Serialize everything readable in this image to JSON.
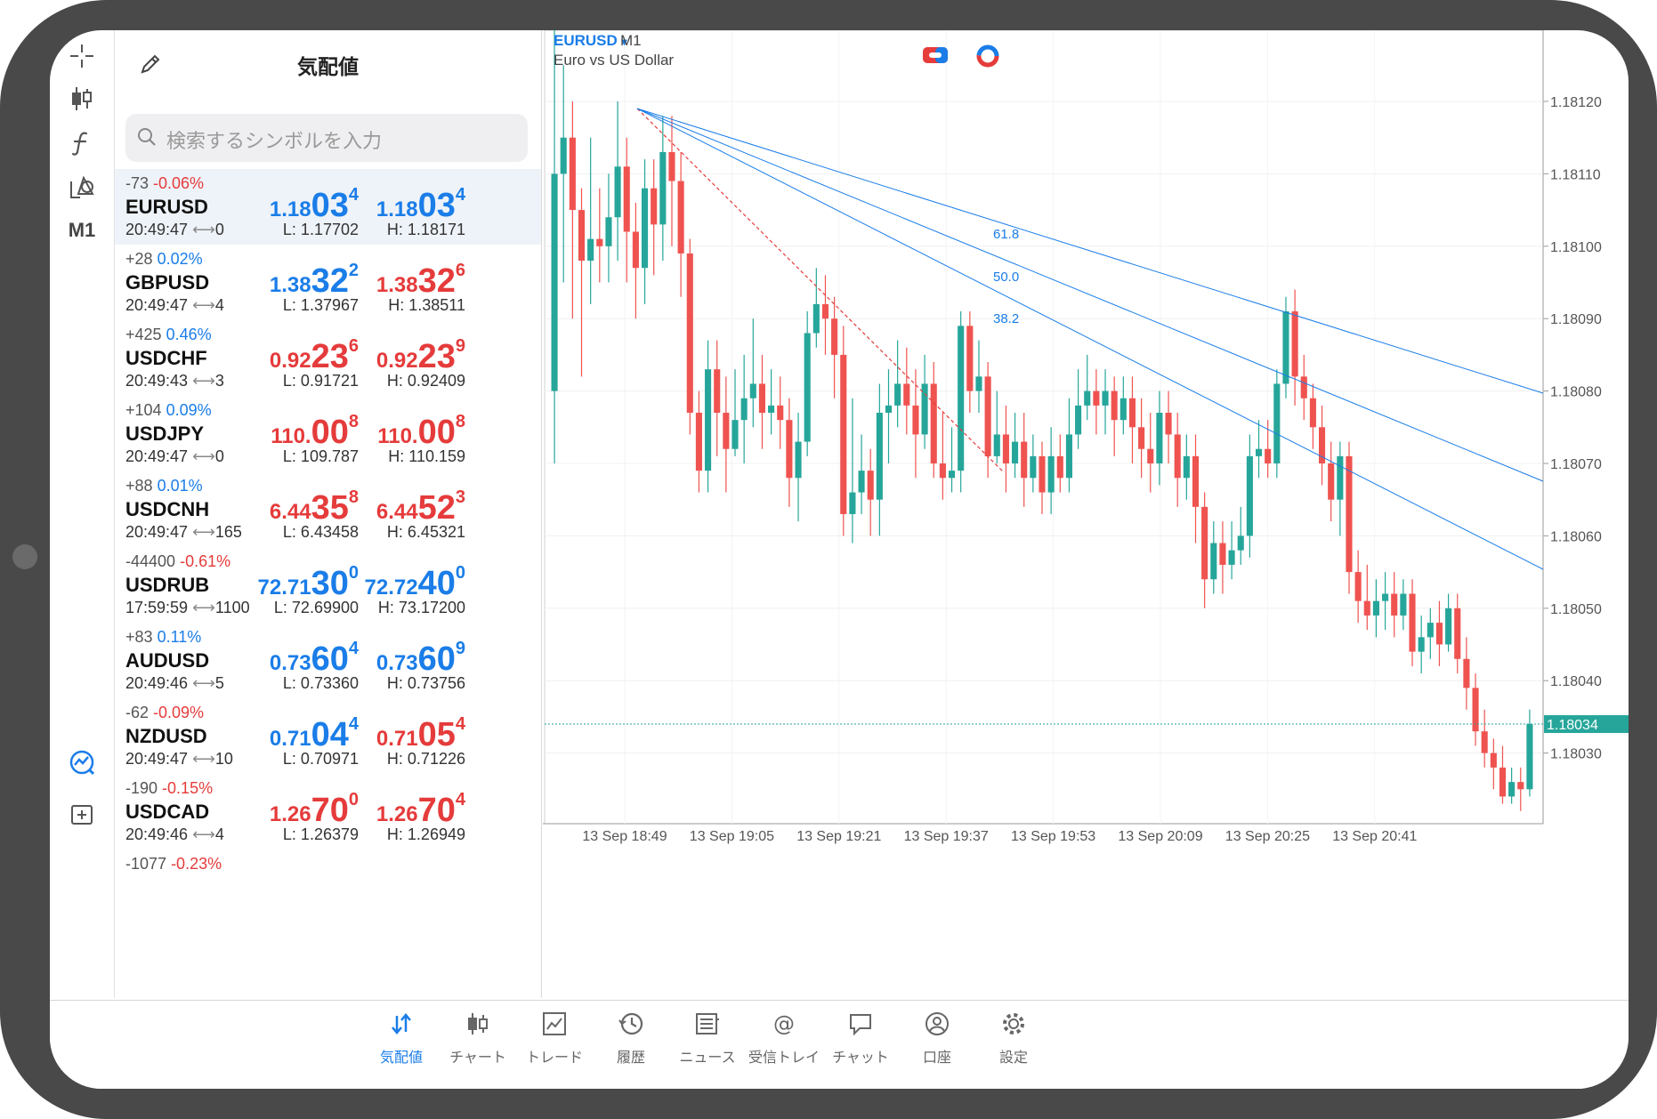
{
  "rail": {
    "timeframe": "M1"
  },
  "market_watch": {
    "title": "気配値",
    "search_placeholder": "検索するシンボルを入力",
    "rows": [
      {
        "pts": "-73",
        "pct": "-0.06%",
        "pct_color": "#e53b3b",
        "symbol": "EURUSD",
        "time": "20:49:47",
        "spread": "0",
        "bid_a": "1.18",
        "bid_b": "03",
        "bid_c": "4",
        "bid_color": "#1a7de8",
        "ask_a": "1.18",
        "ask_b": "03",
        "ask_c": "4",
        "ask_color": "#1a7de8",
        "low": "L: 1.17702",
        "high": "H: 1.18171",
        "selected": true
      },
      {
        "pts": "+28",
        "pct": "0.02%",
        "pct_color": "#1a7de8",
        "symbol": "GBPUSD",
        "time": "20:49:47",
        "spread": "4",
        "bid_a": "1.38",
        "bid_b": "32",
        "bid_c": "2",
        "bid_color": "#1a7de8",
        "ask_a": "1.38",
        "ask_b": "32",
        "ask_c": "6",
        "ask_color": "#e53b3b",
        "low": "L: 1.37967",
        "high": "H: 1.38511"
      },
      {
        "pts": "+425",
        "pct": "0.46%",
        "pct_color": "#1a7de8",
        "symbol": "USDCHF",
        "time": "20:49:43",
        "spread": "3",
        "bid_a": "0.92",
        "bid_b": "23",
        "bid_c": "6",
        "bid_color": "#e53b3b",
        "ask_a": "0.92",
        "ask_b": "23",
        "ask_c": "9",
        "ask_color": "#e53b3b",
        "low": "L: 0.91721",
        "high": "H: 0.92409"
      },
      {
        "pts": "+104",
        "pct": "0.09%",
        "pct_color": "#1a7de8",
        "symbol": "USDJPY",
        "time": "20:49:47",
        "spread": "0",
        "bid_a": "110.",
        "bid_b": "00",
        "bid_c": "8",
        "bid_color": "#e53b3b",
        "ask_a": "110.",
        "ask_b": "00",
        "ask_c": "8",
        "ask_color": "#e53b3b",
        "low": "L: 109.787",
        "high": "H: 110.159"
      },
      {
        "pts": "+88",
        "pct": "0.01%",
        "pct_color": "#1a7de8",
        "symbol": "USDCNH",
        "time": "20:49:47",
        "spread": "165",
        "bid_a": "6.44",
        "bid_b": "35",
        "bid_c": "8",
        "bid_color": "#e53b3b",
        "ask_a": "6.44",
        "ask_b": "52",
        "ask_c": "3",
        "ask_color": "#e53b3b",
        "low": "L: 6.43458",
        "high": "H: 6.45321"
      },
      {
        "pts": "-44400",
        "pct": "-0.61%",
        "pct_color": "#e53b3b",
        "symbol": "USDRUB",
        "time": "17:59:59",
        "spread": "1100",
        "bid_a": "72.71",
        "bid_b": "30",
        "bid_c": "0",
        "bid_color": "#1a7de8",
        "ask_a": "72.72",
        "ask_b": "40",
        "ask_c": "0",
        "ask_color": "#1a7de8",
        "low": "L: 72.69900",
        "high": "H: 73.17200"
      },
      {
        "pts": "+83",
        "pct": "0.11%",
        "pct_color": "#1a7de8",
        "symbol": "AUDUSD",
        "time": "20:49:46",
        "spread": "5",
        "bid_a": "0.73",
        "bid_b": "60",
        "bid_c": "4",
        "bid_color": "#1a7de8",
        "ask_a": "0.73",
        "ask_b": "60",
        "ask_c": "9",
        "ask_color": "#1a7de8",
        "low": "L: 0.73360",
        "high": "H: 0.73756"
      },
      {
        "pts": "-62",
        "pct": "-0.09%",
        "pct_color": "#e53b3b",
        "symbol": "NZDUSD",
        "time": "20:49:47",
        "spread": "10",
        "bid_a": "0.71",
        "bid_b": "04",
        "bid_c": "4",
        "bid_color": "#1a7de8",
        "ask_a": "0.71",
        "ask_b": "05",
        "ask_c": "4",
        "ask_color": "#e53b3b",
        "low": "L: 0.70971",
        "high": "H: 0.71226"
      },
      {
        "pts": "-190",
        "pct": "-0.15%",
        "pct_color": "#e53b3b",
        "symbol": "USDCAD",
        "time": "20:49:46",
        "spread": "4",
        "bid_a": "1.26",
        "bid_b": "70",
        "bid_c": "0",
        "bid_color": "#e53b3b",
        "ask_a": "1.26",
        "ask_b": "70",
        "ask_c": "4",
        "ask_color": "#e53b3b",
        "low": "L: 1.26379",
        "high": "H: 1.26949"
      },
      {
        "pts": "-1077",
        "pct": "-0.23%",
        "pct_color": "#e53b3b",
        "symbol": "",
        "time": "",
        "spread": "",
        "bid_a": "",
        "bid_b": "",
        "bid_c": "",
        "bid_color": "#1a7de8",
        "ask_a": "",
        "ask_b": "",
        "ask_c": "",
        "ask_color": "#1a7de8",
        "low": "",
        "high": ""
      }
    ]
  },
  "chart": {
    "symbol": "EURUSD",
    "timeframe_arrow": "▾",
    "timeframe": "M1",
    "description": "Euro vs US Dollar",
    "up_color": "#26a69a",
    "down_color": "#ef5350",
    "fib_color": "#1a7de8",
    "price_labels": [
      "1.18120",
      "1.18110",
      "1.18100",
      "1.18090",
      "1.18080",
      "1.18070",
      "1.18060",
      "1.18050",
      "1.18040",
      "1.18030"
    ],
    "current_price": "1.18034",
    "time_labels": [
      "13 Sep 18:49",
      "13 Sep 19:05",
      "13 Sep 19:21",
      "13 Sep 19:37",
      "13 Sep 19:53",
      "13 Sep 20:09",
      "13 Sep 20:25",
      "13 Sep 20:41"
    ],
    "fib_levels": [
      "61.8",
      "50.0",
      "38.2"
    ]
  },
  "chart_data": {
    "type": "candlestick",
    "title": "EURUSD M1",
    "ylim": [
      1.18015,
      1.18125
    ],
    "candles": [
      [
        1.1808,
        1.1811,
        1.1813,
        1.1807
      ],
      [
        1.1811,
        1.18115,
        1.18125,
        1.18095
      ],
      [
        1.18115,
        1.18105,
        1.1812,
        1.1809
      ],
      [
        1.18105,
        1.18098,
        1.18108,
        1.18082
      ],
      [
        1.18098,
        1.18101,
        1.18115,
        1.18092
      ],
      [
        1.18101,
        1.181,
        1.18108,
        1.18095
      ],
      [
        1.181,
        1.18104,
        1.1811,
        1.18095
      ],
      [
        1.18104,
        1.18111,
        1.1812,
        1.18098
      ],
      [
        1.18111,
        1.18102,
        1.18115,
        1.18095
      ],
      [
        1.18102,
        1.18097,
        1.18106,
        1.1809
      ],
      [
        1.18097,
        1.18108,
        1.18112,
        1.18092
      ],
      [
        1.18108,
        1.18103,
        1.18112,
        1.18096
      ],
      [
        1.18103,
        1.18113,
        1.18118,
        1.18098
      ],
      [
        1.18113,
        1.18109,
        1.18118,
        1.181
      ],
      [
        1.18109,
        1.18099,
        1.18113,
        1.18093
      ],
      [
        1.18099,
        1.18077,
        1.18101,
        1.18074
      ],
      [
        1.18077,
        1.18069,
        1.1808,
        1.18066
      ],
      [
        1.18069,
        1.18083,
        1.18087,
        1.18066
      ],
      [
        1.18083,
        1.18077,
        1.18087,
        1.18071
      ],
      [
        1.18077,
        1.18072,
        1.18082,
        1.18066
      ],
      [
        1.18072,
        1.18076,
        1.18083,
        1.18071
      ],
      [
        1.18076,
        1.18079,
        1.18085,
        1.1807
      ],
      [
        1.18079,
        1.18081,
        1.1809,
        1.18075
      ],
      [
        1.18081,
        1.18077,
        1.18085,
        1.18072
      ],
      [
        1.18077,
        1.18078,
        1.18083,
        1.18074
      ],
      [
        1.18078,
        1.18076,
        1.18082,
        1.18072
      ],
      [
        1.18076,
        1.18068,
        1.18079,
        1.18064
      ],
      [
        1.18068,
        1.18073,
        1.18077,
        1.18062
      ],
      [
        1.18073,
        1.18088,
        1.18091,
        1.18071
      ],
      [
        1.18088,
        1.18092,
        1.18097,
        1.18086
      ],
      [
        1.18092,
        1.1809,
        1.18096,
        1.18085
      ],
      [
        1.1809,
        1.18085,
        1.18093,
        1.18079
      ],
      [
        1.18085,
        1.18063,
        1.18089,
        1.1806
      ],
      [
        1.18063,
        1.18066,
        1.18079,
        1.18059
      ],
      [
        1.18066,
        1.18069,
        1.18074,
        1.18063
      ],
      [
        1.18069,
        1.18065,
        1.18072,
        1.1806
      ],
      [
        1.18065,
        1.18077,
        1.18081,
        1.1806
      ],
      [
        1.18077,
        1.18078,
        1.18083,
        1.1807
      ],
      [
        1.18078,
        1.18081,
        1.18087,
        1.18075
      ],
      [
        1.18081,
        1.18078,
        1.18086,
        1.18074
      ],
      [
        1.18078,
        1.18074,
        1.18083,
        1.18068
      ],
      [
        1.18074,
        1.18081,
        1.18085,
        1.18072
      ],
      [
        1.18081,
        1.1807,
        1.18084,
        1.18068
      ],
      [
        1.1807,
        1.18068,
        1.18077,
        1.18065
      ],
      [
        1.18068,
        1.18069,
        1.18075,
        1.18066
      ],
      [
        1.18069,
        1.18089,
        1.18091,
        1.18066
      ],
      [
        1.18089,
        1.1808,
        1.18091,
        1.18077
      ],
      [
        1.1808,
        1.18082,
        1.18087,
        1.18077
      ],
      [
        1.18082,
        1.18071,
        1.18084,
        1.18068
      ],
      [
        1.18071,
        1.18074,
        1.1808,
        1.1807
      ],
      [
        1.18074,
        1.1807,
        1.18078,
        1.18066
      ],
      [
        1.1807,
        1.18073,
        1.18077,
        1.18068
      ],
      [
        1.18073,
        1.18068,
        1.18077,
        1.18064
      ],
      [
        1.18068,
        1.18071,
        1.18074,
        1.18066
      ],
      [
        1.18071,
        1.18066,
        1.18073,
        1.18063
      ],
      [
        1.18066,
        1.18071,
        1.18075,
        1.18063
      ],
      [
        1.18071,
        1.18068,
        1.18074,
        1.18066
      ],
      [
        1.18068,
        1.18074,
        1.18079,
        1.18066
      ],
      [
        1.18074,
        1.18078,
        1.18083,
        1.18072
      ],
      [
        1.18078,
        1.1808,
        1.18085,
        1.18076
      ],
      [
        1.1808,
        1.18078,
        1.18083,
        1.18074
      ],
      [
        1.18078,
        1.1808,
        1.18083,
        1.18074
      ],
      [
        1.1808,
        1.18076,
        1.18082,
        1.18071
      ],
      [
        1.18076,
        1.18079,
        1.18082,
        1.18074
      ],
      [
        1.18079,
        1.18075,
        1.18082,
        1.1807
      ],
      [
        1.18075,
        1.18072,
        1.18079,
        1.18068
      ],
      [
        1.18072,
        1.1807,
        1.18077,
        1.18066
      ],
      [
        1.1807,
        1.18077,
        1.1808,
        1.18067
      ],
      [
        1.18077,
        1.18074,
        1.1808,
        1.1807
      ],
      [
        1.18074,
        1.18068,
        1.18077,
        1.18064
      ],
      [
        1.18068,
        1.18071,
        1.18074,
        1.18065
      ],
      [
        1.18071,
        1.18064,
        1.18074,
        1.18059
      ],
      [
        1.18064,
        1.18054,
        1.18066,
        1.1805
      ],
      [
        1.18054,
        1.18059,
        1.18062,
        1.18052
      ],
      [
        1.18059,
        1.18056,
        1.18062,
        1.18052
      ],
      [
        1.18056,
        1.18058,
        1.18062,
        1.18054
      ],
      [
        1.18058,
        1.1806,
        1.18064,
        1.18056
      ],
      [
        1.1806,
        1.18071,
        1.18074,
        1.18057
      ],
      [
        1.18071,
        1.18072,
        1.18076,
        1.18068
      ],
      [
        1.18072,
        1.1807,
        1.18076,
        1.18068
      ],
      [
        1.1807,
        1.18081,
        1.18083,
        1.18068
      ],
      [
        1.18081,
        1.18091,
        1.18093,
        1.18079
      ],
      [
        1.18091,
        1.18082,
        1.18094,
        1.18078
      ],
      [
        1.18082,
        1.18079,
        1.18085,
        1.18076
      ],
      [
        1.18079,
        1.18075,
        1.18081,
        1.18072
      ],
      [
        1.18075,
        1.1807,
        1.18078,
        1.18067
      ],
      [
        1.1807,
        1.18065,
        1.18073,
        1.18062
      ],
      [
        1.18065,
        1.18071,
        1.18073,
        1.1806
      ],
      [
        1.18071,
        1.18055,
        1.18073,
        1.18052
      ],
      [
        1.18055,
        1.18051,
        1.18058,
        1.18048
      ],
      [
        1.18051,
        1.18049,
        1.18056,
        1.18047
      ],
      [
        1.18049,
        1.18051,
        1.18054,
        1.18046
      ],
      [
        1.18051,
        1.18052,
        1.18055,
        1.18047
      ],
      [
        1.18052,
        1.18049,
        1.18055,
        1.18046
      ],
      [
        1.18049,
        1.18052,
        1.18054,
        1.18047
      ],
      [
        1.18052,
        1.18044,
        1.18054,
        1.18042
      ],
      [
        1.18044,
        1.18046,
        1.18049,
        1.18041
      ],
      [
        1.18046,
        1.18048,
        1.1805,
        1.18043
      ],
      [
        1.18048,
        1.18045,
        1.18051,
        1.18042
      ],
      [
        1.18045,
        1.1805,
        1.18052,
        1.18044
      ],
      [
        1.1805,
        1.18043,
        1.18052,
        1.18041
      ],
      [
        1.18043,
        1.18039,
        1.18046,
        1.18036
      ],
      [
        1.18039,
        1.18033,
        1.18041,
        1.18031
      ],
      [
        1.18033,
        1.1803,
        1.18036,
        1.18028
      ],
      [
        1.1803,
        1.18028,
        1.18032,
        1.18025
      ],
      [
        1.18028,
        1.18024,
        1.18031,
        1.18023
      ],
      [
        1.18024,
        1.18026,
        1.18028,
        1.18023
      ],
      [
        1.18026,
        1.18025,
        1.18028,
        1.18022
      ],
      [
        1.18025,
        1.18034,
        1.18036,
        1.18024
      ]
    ]
  },
  "tabbar": {
    "items": [
      {
        "label": "気配値",
        "name": "tab-quotes",
        "active": true
      },
      {
        "label": "チャート",
        "name": "tab-chart"
      },
      {
        "label": "トレード",
        "name": "tab-trade"
      },
      {
        "label": "履歴",
        "name": "tab-history"
      },
      {
        "label": "ニュース",
        "name": "tab-news"
      },
      {
        "label": "受信トレイ",
        "name": "tab-inbox"
      },
      {
        "label": "チャット",
        "name": "tab-chat"
      },
      {
        "label": "口座",
        "name": "tab-accounts"
      },
      {
        "label": "設定",
        "name": "tab-settings"
      }
    ]
  }
}
